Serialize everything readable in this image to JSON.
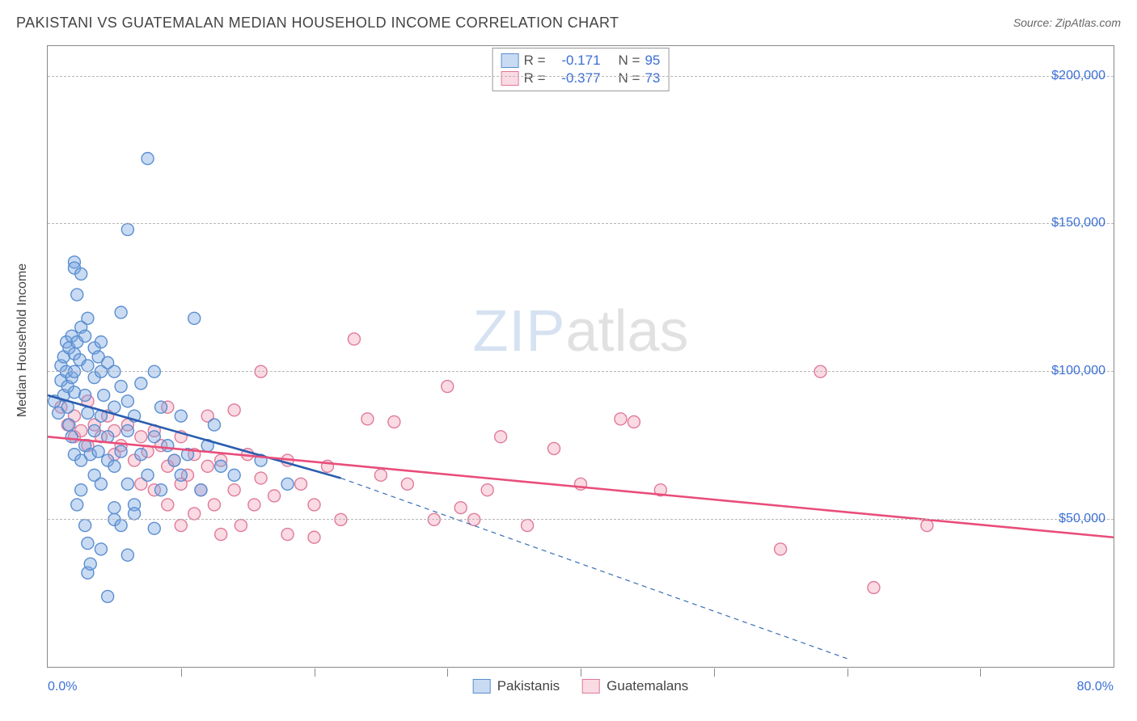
{
  "title": "PAKISTANI VS GUATEMALAN MEDIAN HOUSEHOLD INCOME CORRELATION CHART",
  "source": "Source: ZipAtlas.com",
  "ylabel": "Median Household Income",
  "watermark": {
    "part1": "ZIP",
    "part2": "atlas"
  },
  "chart": {
    "type": "scatter",
    "xlim": [
      0,
      80
    ],
    "ylim": [
      0,
      210000
    ],
    "x_unit": "%",
    "xlabel_min": "0.0%",
    "xlabel_max": "80.0%",
    "xticks": [
      10,
      20,
      30,
      40,
      50,
      60,
      70
    ],
    "y_gridlines": [
      50000,
      100000,
      150000,
      200000
    ],
    "y_gridlabels": [
      "$50,000",
      "$100,000",
      "$150,000",
      "$200,000"
    ],
    "grid_color": "#b8b8b8",
    "axis_color": "#888888",
    "tick_label_color": "#3b6fd6",
    "background_color": "#ffffff",
    "marker_radius": 7.5,
    "marker_stroke_width": 1.4,
    "legend_box": {
      "rows": [
        {
          "color_key": "a",
          "r_label": "R =",
          "r_value": "-0.171",
          "n_label": "N =",
          "n_value": "95"
        },
        {
          "color_key": "b",
          "r_label": "R =",
          "r_value": "-0.377",
          "n_label": "N =",
          "n_value": "73"
        }
      ],
      "text_color": "#555",
      "value_color": "#3b6fd6"
    },
    "legend_bottom": [
      {
        "color_key": "a",
        "label": "Pakistanis"
      },
      {
        "color_key": "b",
        "label": "Guatemalans"
      }
    ],
    "series": {
      "a": {
        "name": "Pakistanis",
        "fill": "rgba(120,165,225,0.40)",
        "stroke": "#5a8ed0",
        "line_color": "#2a5db0",
        "line_width": 2.6,
        "trend": {
          "x1": 0,
          "y1": 92000,
          "x2": 22,
          "y2": 64000
        },
        "trend_ext": {
          "x1": 22,
          "y1": 64000,
          "x2": 60,
          "y2": 3000,
          "dash": "6 5",
          "width": 1.2,
          "color": "#3a6db5"
        },
        "points": [
          [
            0.5,
            90000
          ],
          [
            0.8,
            86000
          ],
          [
            1.0,
            102000
          ],
          [
            1.0,
            97000
          ],
          [
            1.2,
            105000
          ],
          [
            1.2,
            92000
          ],
          [
            1.4,
            110000
          ],
          [
            1.4,
            100000
          ],
          [
            1.5,
            95000
          ],
          [
            1.5,
            88000
          ],
          [
            1.6,
            108000
          ],
          [
            1.6,
            82000
          ],
          [
            1.8,
            112000
          ],
          [
            1.8,
            98000
          ],
          [
            1.8,
            78000
          ],
          [
            2.0,
            137000
          ],
          [
            2.0,
            135000
          ],
          [
            2.0,
            106000
          ],
          [
            2.0,
            100000
          ],
          [
            2.0,
            93000
          ],
          [
            2.0,
            72000
          ],
          [
            2.2,
            126000
          ],
          [
            2.2,
            110000
          ],
          [
            2.2,
            55000
          ],
          [
            2.4,
            104000
          ],
          [
            2.5,
            133000
          ],
          [
            2.5,
            115000
          ],
          [
            2.5,
            70000
          ],
          [
            2.5,
            60000
          ],
          [
            2.8,
            112000
          ],
          [
            2.8,
            92000
          ],
          [
            2.8,
            75000
          ],
          [
            2.8,
            48000
          ],
          [
            3.0,
            118000
          ],
          [
            3.0,
            102000
          ],
          [
            3.0,
            86000
          ],
          [
            3.0,
            42000
          ],
          [
            3.0,
            32000
          ],
          [
            3.2,
            72000
          ],
          [
            3.2,
            35000
          ],
          [
            3.5,
            108000
          ],
          [
            3.5,
            98000
          ],
          [
            3.5,
            80000
          ],
          [
            3.5,
            65000
          ],
          [
            3.8,
            105000
          ],
          [
            3.8,
            73000
          ],
          [
            4.0,
            110000
          ],
          [
            4.0,
            100000
          ],
          [
            4.0,
            85000
          ],
          [
            4.0,
            62000
          ],
          [
            4.0,
            40000
          ],
          [
            4.2,
            92000
          ],
          [
            4.5,
            103000
          ],
          [
            4.5,
            78000
          ],
          [
            4.5,
            70000
          ],
          [
            4.5,
            24000
          ],
          [
            5.0,
            100000
          ],
          [
            5.0,
            88000
          ],
          [
            5.0,
            68000
          ],
          [
            5.0,
            54000
          ],
          [
            5.0,
            50000
          ],
          [
            5.5,
            120000
          ],
          [
            5.5,
            95000
          ],
          [
            5.5,
            73000
          ],
          [
            5.5,
            48000
          ],
          [
            6.0,
            148000
          ],
          [
            6.0,
            90000
          ],
          [
            6.0,
            80000
          ],
          [
            6.0,
            62000
          ],
          [
            6.0,
            38000
          ],
          [
            6.5,
            85000
          ],
          [
            6.5,
            55000
          ],
          [
            6.5,
            52000
          ],
          [
            7.0,
            96000
          ],
          [
            7.0,
            72000
          ],
          [
            7.5,
            172000
          ],
          [
            7.5,
            65000
          ],
          [
            8.0,
            100000
          ],
          [
            8.0,
            78000
          ],
          [
            8.0,
            47000
          ],
          [
            8.5,
            88000
          ],
          [
            8.5,
            60000
          ],
          [
            9.0,
            75000
          ],
          [
            9.5,
            70000
          ],
          [
            10.0,
            85000
          ],
          [
            10.0,
            65000
          ],
          [
            10.5,
            72000
          ],
          [
            11.0,
            118000
          ],
          [
            11.5,
            60000
          ],
          [
            12.0,
            75000
          ],
          [
            12.5,
            82000
          ],
          [
            13.0,
            68000
          ],
          [
            14.0,
            65000
          ],
          [
            16.0,
            70000
          ],
          [
            18.0,
            62000
          ]
        ]
      },
      "b": {
        "name": "Guatemalans",
        "fill": "rgba(240,150,175,0.35)",
        "stroke": "#e07a9a",
        "line_color": "#e94d7a",
        "line_width": 2.6,
        "trend": {
          "x1": 0,
          "y1": 78000,
          "x2": 80,
          "y2": 44000
        },
        "points": [
          [
            1.0,
            88000
          ],
          [
            1.5,
            82000
          ],
          [
            2.0,
            85000
          ],
          [
            2.0,
            78000
          ],
          [
            2.5,
            80000
          ],
          [
            3.0,
            90000
          ],
          [
            3.0,
            75000
          ],
          [
            3.5,
            82000
          ],
          [
            4.0,
            78000
          ],
          [
            4.5,
            85000
          ],
          [
            5.0,
            80000
          ],
          [
            5.0,
            72000
          ],
          [
            5.5,
            75000
          ],
          [
            6.0,
            82000
          ],
          [
            6.5,
            70000
          ],
          [
            7.0,
            78000
          ],
          [
            7.0,
            62000
          ],
          [
            7.5,
            73000
          ],
          [
            8.0,
            80000
          ],
          [
            8.0,
            60000
          ],
          [
            8.5,
            75000
          ],
          [
            9.0,
            88000
          ],
          [
            9.0,
            68000
          ],
          [
            9.0,
            55000
          ],
          [
            9.5,
            70000
          ],
          [
            10.0,
            78000
          ],
          [
            10.0,
            62000
          ],
          [
            10.0,
            48000
          ],
          [
            10.5,
            65000
          ],
          [
            11.0,
            72000
          ],
          [
            11.0,
            52000
          ],
          [
            11.5,
            60000
          ],
          [
            12.0,
            85000
          ],
          [
            12.0,
            68000
          ],
          [
            12.5,
            55000
          ],
          [
            13.0,
            70000
          ],
          [
            13.0,
            45000
          ],
          [
            14.0,
            87000
          ],
          [
            14.0,
            60000
          ],
          [
            14.5,
            48000
          ],
          [
            15.0,
            72000
          ],
          [
            15.5,
            55000
          ],
          [
            16.0,
            100000
          ],
          [
            16.0,
            64000
          ],
          [
            17.0,
            58000
          ],
          [
            18.0,
            70000
          ],
          [
            18.0,
            45000
          ],
          [
            19.0,
            62000
          ],
          [
            20.0,
            55000
          ],
          [
            20.0,
            44000
          ],
          [
            21.0,
            68000
          ],
          [
            22.0,
            50000
          ],
          [
            23.0,
            111000
          ],
          [
            24.0,
            84000
          ],
          [
            25.0,
            65000
          ],
          [
            26.0,
            83000
          ],
          [
            27.0,
            62000
          ],
          [
            29.0,
            50000
          ],
          [
            30.0,
            95000
          ],
          [
            31.0,
            54000
          ],
          [
            32.0,
            50000
          ],
          [
            33.0,
            60000
          ],
          [
            34.0,
            78000
          ],
          [
            36.0,
            48000
          ],
          [
            38.0,
            74000
          ],
          [
            40.0,
            62000
          ],
          [
            43.0,
            84000
          ],
          [
            44.0,
            83000
          ],
          [
            46.0,
            60000
          ],
          [
            55.0,
            40000
          ],
          [
            58.0,
            100000
          ],
          [
            62.0,
            27000
          ],
          [
            66.0,
            48000
          ]
        ]
      }
    }
  }
}
